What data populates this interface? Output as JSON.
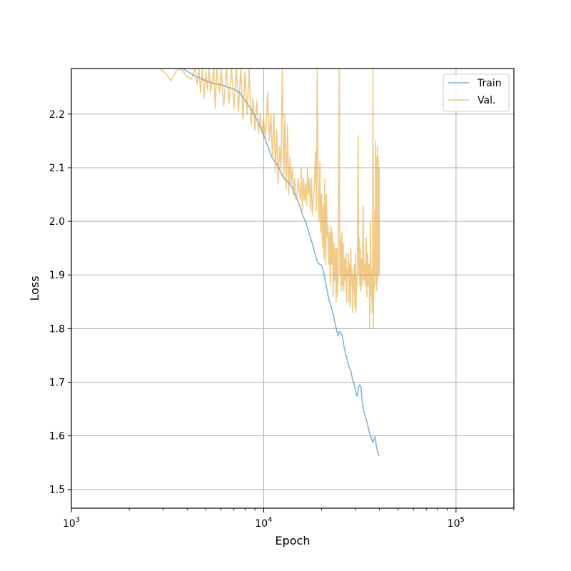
{
  "chart_data": {
    "type": "line",
    "title": "",
    "xlabel": "Epoch",
    "ylabel": "Loss",
    "xscale": "log",
    "xlim": [
      1000,
      200000
    ],
    "ylim": [
      1.465,
      2.285
    ],
    "grid": true,
    "legend_position": "top-right",
    "x_ticks": [
      {
        "value": 1000,
        "base": "10",
        "exp": "3"
      },
      {
        "value": 10000,
        "base": "10",
        "exp": "4"
      },
      {
        "value": 100000,
        "base": "10",
        "exp": "5"
      }
    ],
    "y_ticks": [
      {
        "value": 1.5,
        "label": "1.5"
      },
      {
        "value": 1.6,
        "label": "1.6"
      },
      {
        "value": 1.7,
        "label": "1.7"
      },
      {
        "value": 1.8,
        "label": "1.8"
      },
      {
        "value": 1.9,
        "label": "1.9"
      },
      {
        "value": 2.0,
        "label": "2.0"
      },
      {
        "value": 2.1,
        "label": "2.1"
      },
      {
        "value": 2.2,
        "label": "2.2"
      }
    ],
    "series": [
      {
        "name": "Train",
        "color": "#1f77b4",
        "points": [
          [
            3800,
            2.285
          ],
          [
            4200,
            2.275
          ],
          [
            4600,
            2.268
          ],
          [
            5000,
            2.262
          ],
          [
            5500,
            2.257
          ],
          [
            6000,
            2.255
          ],
          [
            6500,
            2.25
          ],
          [
            7000,
            2.247
          ],
          [
            7500,
            2.24
          ],
          [
            8000,
            2.225
          ],
          [
            8500,
            2.212
          ],
          [
            9000,
            2.196
          ],
          [
            9500,
            2.18
          ],
          [
            10000,
            2.16
          ],
          [
            10500,
            2.14
          ],
          [
            11000,
            2.12
          ],
          [
            11500,
            2.11
          ],
          [
            12000,
            2.1
          ],
          [
            12500,
            2.085
          ],
          [
            13000,
            2.077
          ],
          [
            13500,
            2.072
          ],
          [
            14000,
            2.065
          ],
          [
            14500,
            2.05
          ],
          [
            15000,
            2.04
          ],
          [
            15500,
            2.025
          ],
          [
            16000,
            2.01
          ],
          [
            16500,
            2.0
          ],
          [
            17000,
            1.985
          ],
          [
            17500,
            1.97
          ],
          [
            18000,
            1.955
          ],
          [
            18500,
            1.94
          ],
          [
            19000,
            1.925
          ],
          [
            19500,
            1.92
          ],
          [
            20000,
            1.918
          ],
          [
            20500,
            1.905
          ],
          [
            21000,
            1.885
          ],
          [
            21500,
            1.865
          ],
          [
            22000,
            1.85
          ],
          [
            22500,
            1.84
          ],
          [
            23000,
            1.825
          ],
          [
            23500,
            1.81
          ],
          [
            24000,
            1.795
          ],
          [
            24400,
            1.787
          ],
          [
            24700,
            1.795
          ],
          [
            25200,
            1.792
          ],
          [
            25700,
            1.785
          ],
          [
            26200,
            1.765
          ],
          [
            27000,
            1.745
          ],
          [
            27700,
            1.73
          ],
          [
            28400,
            1.72
          ],
          [
            29000,
            1.705
          ],
          [
            29600,
            1.695
          ],
          [
            30200,
            1.68
          ],
          [
            30700,
            1.673
          ],
          [
            31000,
            1.69
          ],
          [
            31500,
            1.695
          ],
          [
            32000,
            1.692
          ],
          [
            32500,
            1.665
          ],
          [
            33000,
            1.65
          ],
          [
            33500,
            1.64
          ],
          [
            34000,
            1.632
          ],
          [
            34500,
            1.625
          ],
          [
            35000,
            1.615
          ],
          [
            35500,
            1.605
          ],
          [
            36000,
            1.6
          ],
          [
            36500,
            1.592
          ],
          [
            37000,
            1.587
          ],
          [
            37500,
            1.595
          ],
          [
            38000,
            1.598
          ],
          [
            38500,
            1.582
          ],
          [
            39000,
            1.572
          ],
          [
            39500,
            1.565
          ],
          [
            40000,
            1.563
          ]
        ]
      },
      {
        "name": "Val.",
        "color": "#e69f27",
        "points": [
          [
            2900,
            2.285
          ],
          [
            3100,
            2.275
          ],
          [
            3300,
            2.262
          ],
          [
            3500,
            2.28
          ],
          [
            3700,
            2.285
          ],
          [
            4000,
            2.27
          ],
          [
            4200,
            2.265
          ],
          [
            4400,
            2.285
          ],
          [
            4500,
            2.255
          ],
          [
            4600,
            2.285
          ],
          [
            4700,
            2.24
          ],
          [
            4800,
            2.285
          ],
          [
            4900,
            2.23
          ],
          [
            5000,
            2.28
          ],
          [
            5100,
            2.245
          ],
          [
            5200,
            2.285
          ],
          [
            5300,
            2.24
          ],
          [
            5500,
            2.285
          ],
          [
            5600,
            2.21
          ],
          [
            5700,
            2.285
          ],
          [
            5900,
            2.24
          ],
          [
            6000,
            2.285
          ],
          [
            6200,
            2.215
          ],
          [
            6400,
            2.285
          ],
          [
            6600,
            2.22
          ],
          [
            6800,
            2.285
          ],
          [
            7000,
            2.21
          ],
          [
            7200,
            2.285
          ],
          [
            7400,
            2.205
          ],
          [
            7600,
            2.285
          ],
          [
            7800,
            2.19
          ],
          [
            8000,
            2.28
          ],
          [
            8200,
            2.2
          ],
          [
            8400,
            2.285
          ],
          [
            8600,
            2.18
          ],
          [
            8800,
            2.23
          ],
          [
            9000,
            2.17
          ],
          [
            9200,
            2.225
          ],
          [
            9400,
            2.165
          ],
          [
            9600,
            2.2
          ],
          [
            9800,
            2.165
          ],
          [
            10000,
            2.19
          ],
          [
            10200,
            2.155
          ],
          [
            10500,
            2.24
          ],
          [
            10700,
            2.15
          ],
          [
            10900,
            2.2
          ],
          [
            11100,
            2.12
          ],
          [
            11300,
            2.2
          ],
          [
            11500,
            2.09
          ],
          [
            11700,
            2.17
          ],
          [
            11900,
            2.07
          ],
          [
            12100,
            2.14
          ],
          [
            12300,
            2.1
          ],
          [
            12500,
            2.285
          ],
          [
            12700,
            2.08
          ],
          [
            12900,
            2.2
          ],
          [
            13100,
            2.06
          ],
          [
            13300,
            2.18
          ],
          [
            13500,
            2.05
          ],
          [
            13700,
            2.12
          ],
          [
            13900,
            2.07
          ],
          [
            14100,
            2.1
          ],
          [
            14300,
            2.05
          ],
          [
            14500,
            2.08
          ],
          [
            14700,
            2.04
          ],
          [
            14900,
            2.05
          ],
          [
            15100,
            2.08
          ],
          [
            15300,
            2.06
          ],
          [
            15500,
            2.04
          ],
          [
            15700,
            2.1
          ],
          [
            15900,
            2.02
          ],
          [
            16100,
            2.08
          ],
          [
            16300,
            2.04
          ],
          [
            16500,
            2.07
          ],
          [
            16700,
            2.03
          ],
          [
            16900,
            2.1
          ],
          [
            17100,
            2.05
          ],
          [
            17300,
            2.08
          ],
          [
            17500,
            2.02
          ],
          [
            17700,
            2.08
          ],
          [
            17900,
            2.01
          ],
          [
            18100,
            2.04
          ],
          [
            18300,
            2.06
          ],
          [
            18600,
            2.13
          ],
          [
            18800,
            2.02
          ],
          [
            19000,
            2.285
          ],
          [
            19200,
            2.05
          ],
          [
            19400,
            2.0
          ],
          [
            19600,
            2.11
          ],
          [
            19800,
            1.98
          ],
          [
            20000,
            2.05
          ],
          [
            20200,
            1.95
          ],
          [
            20400,
            2.03
          ],
          [
            20600,
            1.93
          ],
          [
            20800,
            2.08
          ],
          [
            21000,
            1.92
          ],
          [
            21200,
            2.05
          ],
          [
            21400,
            1.97
          ],
          [
            21600,
            1.99
          ],
          [
            21800,
            1.92
          ],
          [
            22000,
            1.98
          ],
          [
            22200,
            1.88
          ],
          [
            22400,
            1.99
          ],
          [
            22600,
            1.92
          ],
          [
            22800,
            1.98
          ],
          [
            23000,
            1.86
          ],
          [
            23200,
            1.96
          ],
          [
            23400,
            1.89
          ],
          [
            23600,
            1.95
          ],
          [
            23800,
            1.85
          ],
          [
            24000,
            1.95
          ],
          [
            24200,
            1.86
          ],
          [
            24400,
            1.9
          ],
          [
            24700,
            2.285
          ],
          [
            24900,
            1.9
          ],
          [
            25100,
            1.97
          ],
          [
            25300,
            1.87
          ],
          [
            25500,
            1.98
          ],
          [
            25700,
            1.88
          ],
          [
            25900,
            1.96
          ],
          [
            26100,
            1.87
          ],
          [
            26300,
            1.93
          ],
          [
            26500,
            1.89
          ],
          [
            26800,
            1.94
          ],
          [
            27000,
            1.85
          ],
          [
            27200,
            1.91
          ],
          [
            27400,
            1.9
          ],
          [
            27600,
            1.94
          ],
          [
            27800,
            1.85
          ],
          [
            28000,
            1.92
          ],
          [
            28200,
            1.84
          ],
          [
            28400,
            1.95
          ],
          [
            28600,
            1.88
          ],
          [
            28800,
            1.91
          ],
          [
            29000,
            1.83
          ],
          [
            29200,
            1.9
          ],
          [
            29400,
            1.87
          ],
          [
            29600,
            1.92
          ],
          [
            29800,
            1.84
          ],
          [
            30000,
            1.94
          ],
          [
            30200,
            1.83
          ],
          [
            30400,
            1.9
          ],
          [
            30600,
            1.88
          ],
          [
            30800,
            1.98
          ],
          [
            31000,
            2.16
          ],
          [
            31200,
            1.9
          ],
          [
            31400,
            1.97
          ],
          [
            31600,
            1.88
          ],
          [
            31800,
            1.95
          ],
          [
            32000,
            1.87
          ],
          [
            32300,
            1.93
          ],
          [
            32600,
            1.88
          ],
          [
            32900,
            2.03
          ],
          [
            33200,
            1.89
          ],
          [
            33500,
            1.92
          ],
          [
            33800,
            1.88
          ],
          [
            34100,
            1.97
          ],
          [
            34400,
            1.86
          ],
          [
            34700,
            1.94
          ],
          [
            35000,
            1.88
          ],
          [
            35300,
            1.92
          ],
          [
            35600,
            1.8
          ],
          [
            35900,
            2.0
          ],
          [
            36200,
            1.86
          ],
          [
            36400,
            1.91
          ],
          [
            36600,
            1.83
          ],
          [
            36800,
            1.9
          ],
          [
            37000,
            2.285
          ],
          [
            37200,
            1.8
          ],
          [
            37400,
            1.93
          ],
          [
            37600,
            1.87
          ],
          [
            37800,
            2.02
          ],
          [
            38000,
            1.9
          ],
          [
            38200,
            2.15
          ],
          [
            38400,
            1.88
          ],
          [
            38600,
            2.12
          ],
          [
            38800,
            1.87
          ],
          [
            39000,
            2.14
          ],
          [
            39200,
            1.89
          ],
          [
            39400,
            2.12
          ],
          [
            39600,
            1.9
          ],
          [
            39800,
            2.1
          ],
          [
            40000,
            1.9
          ]
        ]
      }
    ]
  }
}
